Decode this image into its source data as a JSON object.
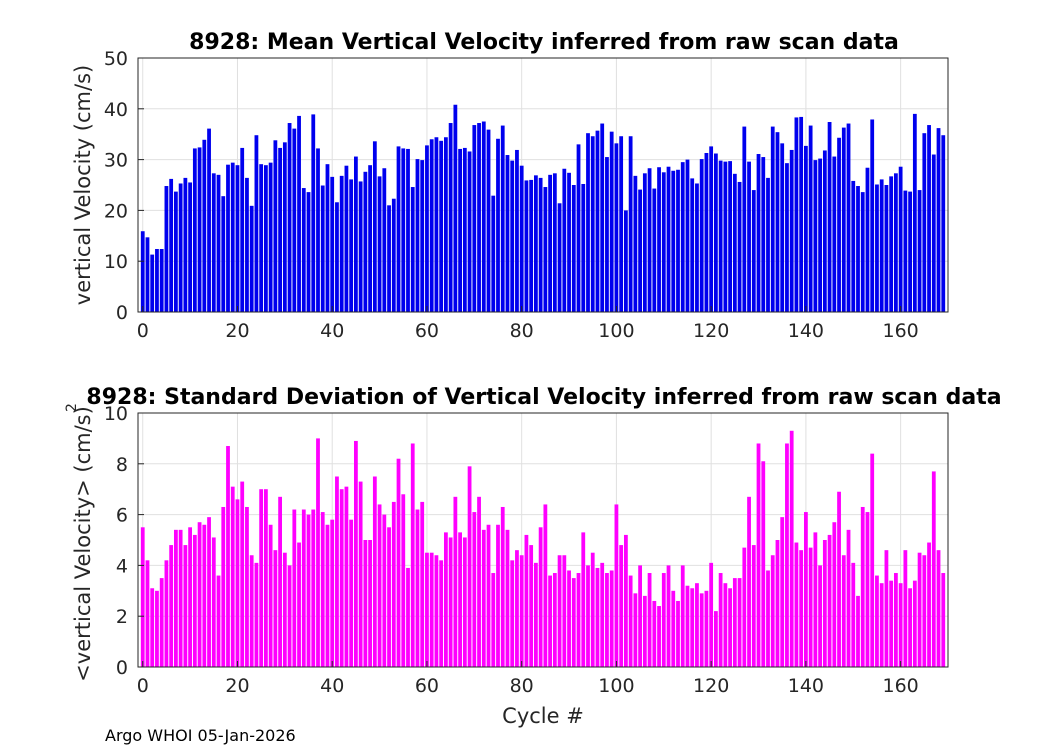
{
  "footer": "Argo WHOI 05-Jan-2026",
  "colors": {
    "mean_bar": "#0000ee",
    "std_bar": "#ff00ff",
    "grid": "#e0e0e0",
    "axis": "#262626"
  },
  "chart_data": [
    {
      "type": "bar",
      "title": "8928: Mean Vertical Velocity inferred from raw scan data",
      "xlabel": "",
      "ylabel": "vertical Velocity (cm/s)",
      "xlim": [
        -1,
        170
      ],
      "ylim": [
        0,
        50
      ],
      "xticks": [
        0,
        20,
        40,
        60,
        80,
        100,
        120,
        140,
        160
      ],
      "yticks": [
        0,
        10,
        20,
        30,
        40,
        50
      ],
      "grid": true,
      "x_start": 0,
      "values": [
        15.9,
        14.7,
        11.3,
        12.4,
        12.4,
        24.8,
        26.2,
        23.7,
        25.3,
        26.4,
        25.5,
        32.2,
        32.4,
        33.9,
        36.1,
        27.3,
        27.0,
        22.8,
        29.0,
        29.4,
        28.9,
        32.3,
        26.4,
        20.9,
        34.8,
        29.1,
        28.9,
        29.4,
        33.8,
        32.3,
        33.4,
        37.2,
        36.1,
        38.6,
        24.4,
        23.6,
        38.9,
        32.2,
        24.9,
        29.1,
        26.6,
        21.6,
        26.8,
        28.8,
        26.1,
        30.6,
        25.7,
        27.6,
        28.9,
        33.6,
        26.7,
        28.3,
        21.0,
        22.3,
        32.6,
        32.2,
        32.1,
        24.6,
        30.1,
        29.9,
        32.8,
        34.0,
        34.4,
        33.7,
        34.4,
        37.2,
        40.8,
        32.1,
        32.3,
        31.6,
        36.8,
        37.2,
        37.5,
        35.9,
        22.9,
        34.1,
        36.7,
        30.9,
        29.8,
        31.9,
        28.8,
        25.9,
        26.0,
        26.9,
        26.4,
        24.6,
        27.0,
        27.3,
        21.4,
        28.2,
        27.4,
        25.0,
        33.0,
        25.2,
        35.2,
        34.6,
        35.7,
        37.1,
        30.5,
        35.5,
        33.2,
        34.6,
        20.0,
        34.6,
        26.8,
        24.1,
        27.3,
        28.3,
        24.3,
        28.5,
        27.5,
        28.6,
        27.8,
        28.0,
        29.5,
        30.0,
        26.3,
        25.3,
        30.1,
        31.3,
        32.6,
        31.2,
        29.8,
        29.6,
        29.7,
        27.2,
        25.6,
        36.5,
        29.6,
        24.0,
        31.1,
        30.5,
        26.4,
        36.5,
        35.4,
        33.2,
        29.3,
        31.9,
        38.3,
        38.4,
        32.7,
        36.7,
        29.9,
        30.2,
        31.8,
        37.4,
        30.6,
        34.3,
        36.3,
        37.1,
        25.8,
        24.8,
        23.6,
        28.4,
        37.9,
        25.1,
        26.1,
        25.0,
        26.7,
        27.3,
        28.6,
        23.9,
        23.7,
        39.0,
        24.0,
        35.2,
        36.8,
        31.0,
        36.2,
        34.8
      ]
    },
    {
      "type": "bar",
      "title": "8928: Standard Deviation of Vertical Velocity inferred from raw scan data",
      "xlabel": "Cycle #",
      "ylabel": "<vertical Velocity> (cm/s)",
      "ylabel_superscript": "2",
      "xlim": [
        -1,
        170
      ],
      "ylim": [
        0,
        10
      ],
      "xticks": [
        0,
        20,
        40,
        60,
        80,
        100,
        120,
        140,
        160
      ],
      "yticks": [
        0,
        2,
        4,
        6,
        8,
        10
      ],
      "grid": true,
      "x_start": 0,
      "values": [
        5.5,
        4.2,
        3.1,
        3.0,
        3.5,
        4.2,
        4.8,
        5.4,
        5.4,
        4.8,
        5.5,
        5.2,
        5.7,
        5.6,
        5.9,
        5.1,
        3.6,
        6.3,
        8.7,
        7.1,
        6.6,
        7.3,
        6.3,
        4.4,
        4.1,
        7.0,
        7.0,
        5.6,
        4.6,
        6.7,
        4.5,
        4.0,
        6.2,
        4.9,
        6.2,
        6.0,
        6.2,
        9.0,
        6.1,
        5.6,
        5.8,
        7.5,
        7.0,
        7.1,
        5.8,
        8.9,
        7.3,
        5.0,
        5.0,
        7.5,
        6.4,
        6.0,
        5.5,
        6.5,
        8.2,
        6.8,
        3.9,
        8.8,
        6.2,
        6.5,
        4.5,
        4.5,
        4.4,
        4.2,
        5.3,
        5.1,
        6.7,
        5.3,
        5.1,
        7.9,
        6.1,
        6.7,
        5.4,
        5.6,
        3.7,
        5.6,
        6.3,
        5.4,
        4.2,
        4.6,
        4.4,
        5.2,
        4.8,
        4.1,
        5.5,
        6.4,
        3.6,
        3.7,
        4.4,
        4.4,
        3.8,
        3.5,
        3.7,
        5.3,
        4.0,
        4.5,
        3.9,
        4.1,
        3.7,
        3.8,
        6.4,
        4.8,
        5.2,
        3.6,
        2.9,
        4.0,
        2.8,
        3.7,
        2.6,
        2.4,
        3.7,
        4.0,
        3.0,
        2.6,
        4.0,
        3.2,
        3.1,
        3.3,
        2.9,
        3.0,
        4.1,
        2.2,
        3.7,
        3.3,
        3.1,
        3.5,
        3.5,
        4.7,
        6.7,
        4.8,
        8.8,
        8.1,
        3.8,
        4.4,
        5.0,
        5.9,
        8.8,
        9.3,
        4.9,
        4.6,
        6.1,
        4.7,
        5.3,
        4.0,
        5.0,
        5.2,
        5.7,
        6.9,
        4.4,
        5.4,
        4.1,
        2.8,
        6.3,
        6.1,
        8.4,
        3.6,
        3.3,
        4.6,
        3.4,
        3.7,
        3.3,
        4.6,
        3.1,
        3.4,
        4.5,
        4.4,
        4.9,
        7.7,
        4.6,
        3.7
      ]
    }
  ]
}
